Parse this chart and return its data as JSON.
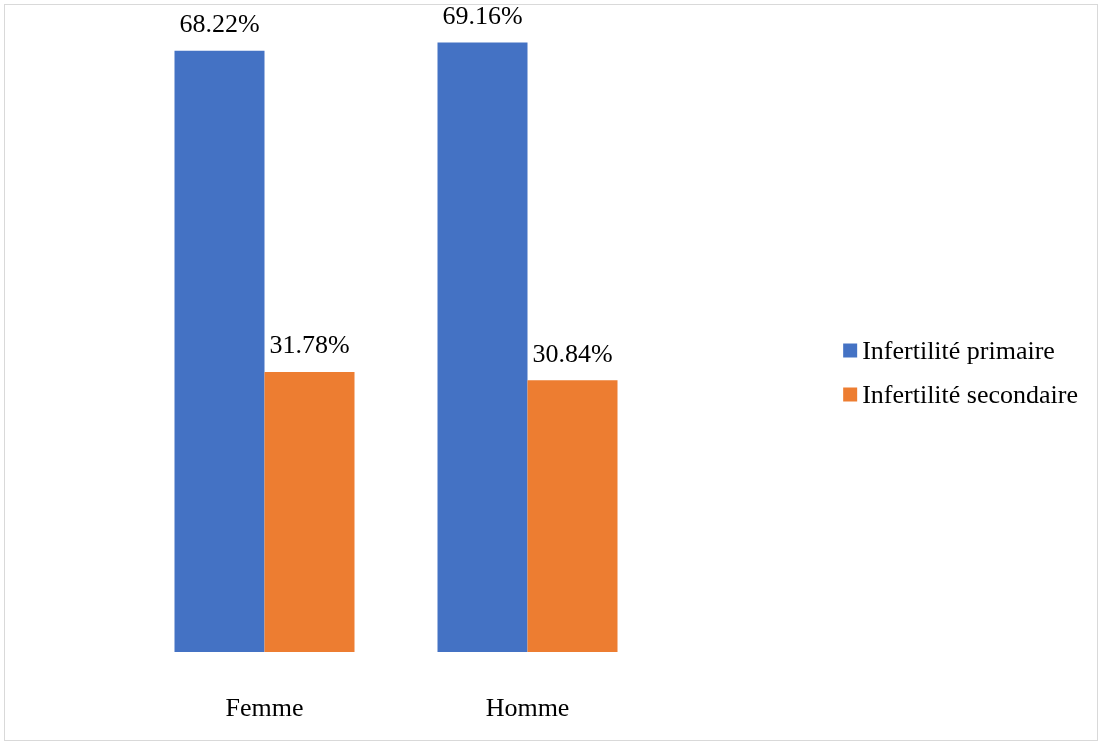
{
  "chart_data": {
    "type": "bar",
    "categories": [
      "Femme",
      "Homme"
    ],
    "series": [
      {
        "name": "Infertilité primaire",
        "color": "#4472c4",
        "values": [
          68.22,
          69.16
        ],
        "value_labels": [
          "68.22%",
          "69.16%"
        ]
      },
      {
        "name": "Infertilité secondaire",
        "color": "#ed7d31",
        "values": [
          31.78,
          30.84
        ],
        "value_labels": [
          "31.78%",
          "30.84%"
        ]
      }
    ],
    "legend": "right",
    "grid": false
  }
}
